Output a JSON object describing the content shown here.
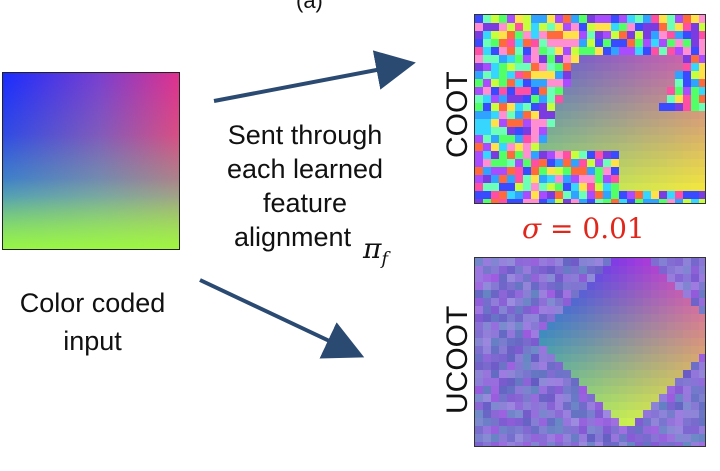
{
  "panel_label": "(a)",
  "input_caption_line1": "Color coded",
  "input_caption_line2": "input",
  "middle_caption_line1": "Sent through",
  "middle_caption_line2": "each learned",
  "middle_caption_line3": "feature",
  "middle_caption_line4": "alignment",
  "symbol": "π",
  "symbol_sub": "f",
  "sigma_symbol": "σ",
  "sigma_text": " = 0.01",
  "top_label": "COOT",
  "bottom_label": "UCOOT",
  "colors": {
    "arrow": "#2b4a72",
    "sigma": "#e0271c"
  },
  "palette": [
    "#3a4bff",
    "#ff4fa5",
    "#53ff67",
    "#c7ff3d",
    "#7a3be0",
    "#36d6ff",
    "#ffe14a",
    "#ff6a3d",
    "#a94cff",
    "#2fa3ff",
    "#ff8fd0",
    "#6dffb8"
  ]
}
